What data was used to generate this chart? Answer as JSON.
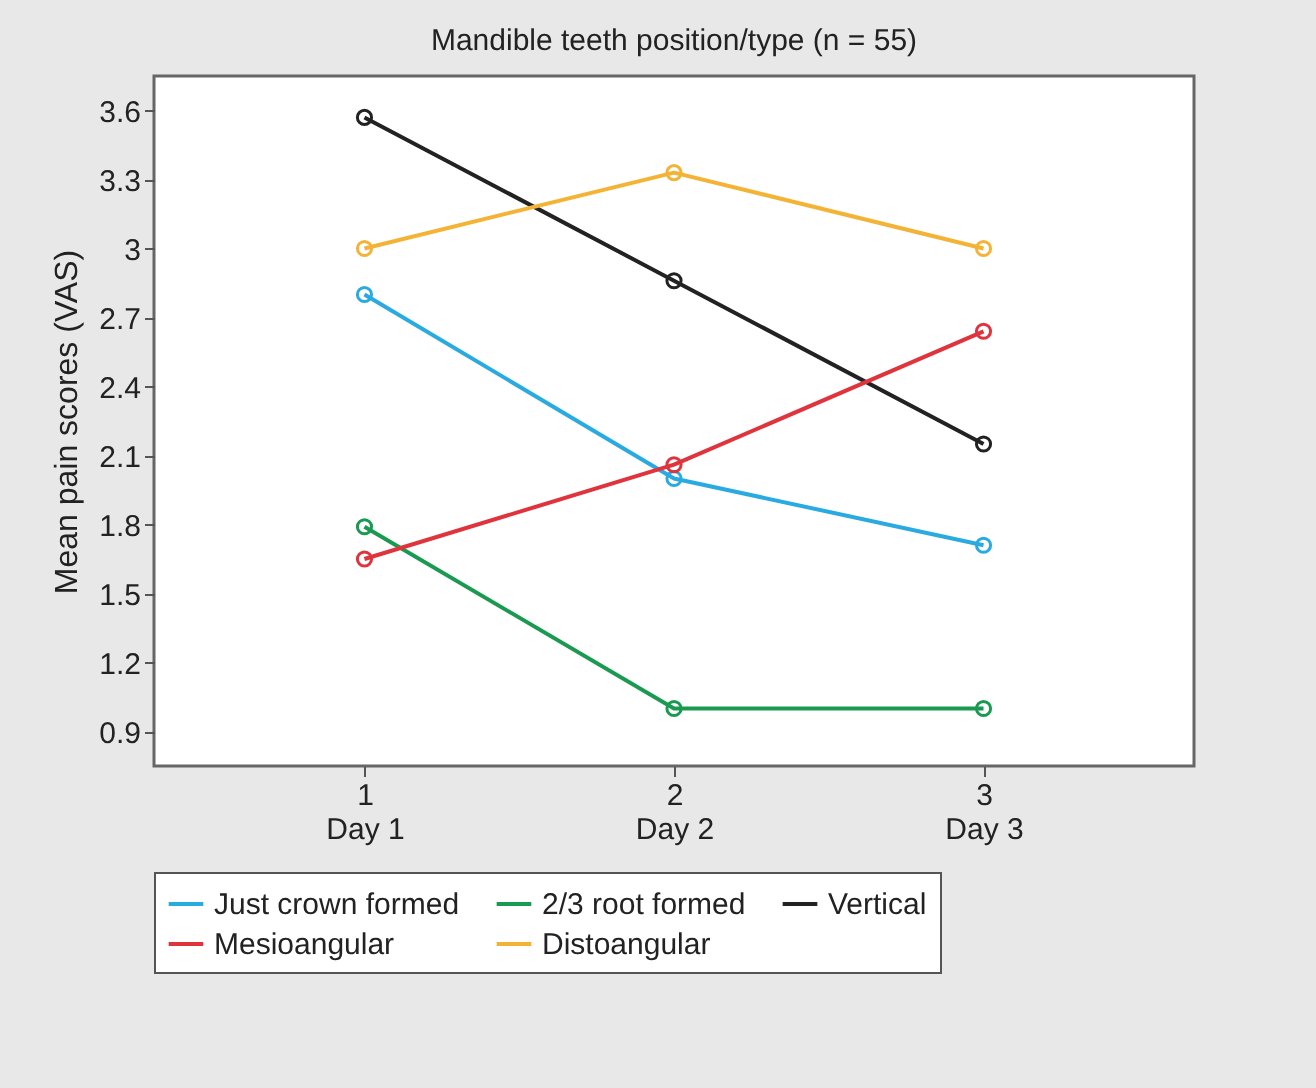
{
  "chart_data": {
    "type": "line",
    "title": "Mandible teeth position/type (n = 55)",
    "ylabel": "Mean pain scores (VAS)",
    "categories": [
      "1\nDay 1",
      "2\nDay 2",
      "3\nDay 3"
    ],
    "ylim": [
      0.75,
      3.75
    ],
    "yticks": [
      0.9,
      1.2,
      1.5,
      1.8,
      2.1,
      2.4,
      2.7,
      3,
      3.3,
      3.6
    ],
    "series": [
      {
        "name": "Just crown formed",
        "color": "#29aae1",
        "values": [
          2.8,
          2.0,
          1.71
        ]
      },
      {
        "name": "2/3 root formed",
        "color": "#1a9a50",
        "values": [
          1.79,
          1.0,
          1.0
        ]
      },
      {
        "name": "Vertical",
        "color": "#222222",
        "values": [
          3.57,
          2.86,
          2.15
        ]
      },
      {
        "name": "Mesioangular",
        "color": "#e0333c",
        "values": [
          1.65,
          2.06,
          2.64
        ]
      },
      {
        "name": "Distoangular",
        "color": "#f5b335",
        "values": [
          3.0,
          3.33,
          3.0
        ]
      }
    ],
    "legend": "bottom",
    "grid": false,
    "marker": "circle",
    "line_style": "solid"
  }
}
